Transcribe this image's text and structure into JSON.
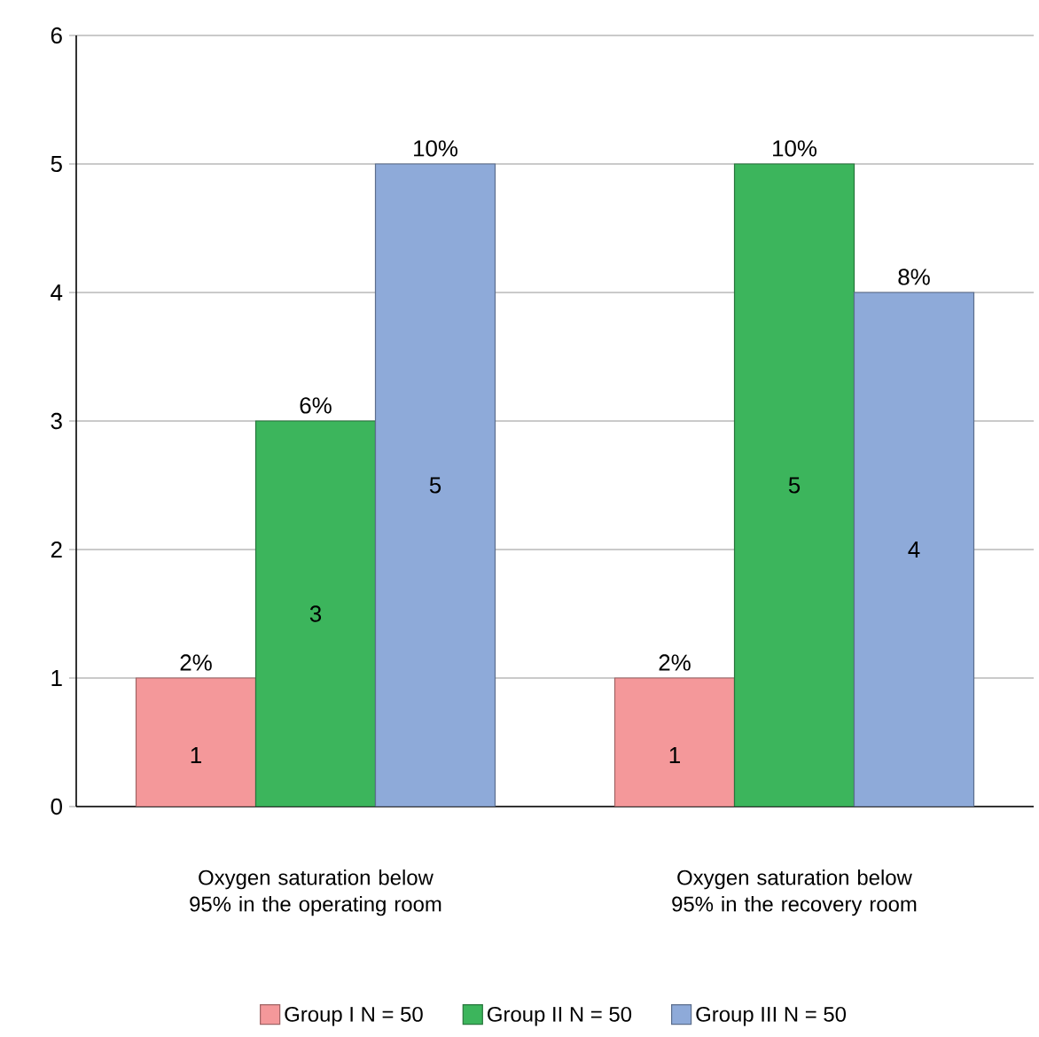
{
  "chart_data": {
    "type": "bar",
    "categories": [
      "Oxygen saturation below 95% in the operating room",
      "Oxygen saturation below 95% in the recovery room"
    ],
    "series": [
      {
        "name": "Group I N = 50",
        "color": "#f4989a",
        "values": [
          1,
          1
        ]
      },
      {
        "name": "Group II N = 50",
        "color": "#3cb55c",
        "values": [
          3,
          5
        ]
      },
      {
        "name": "Group III N = 50",
        "color": "#8eaad9",
        "values": [
          5,
          4
        ]
      }
    ],
    "annotations": [
      "2%",
      "2%",
      "6%",
      "10%",
      "10%",
      "8%"
    ],
    "ylim": [
      0,
      6
    ],
    "yticks": [
      0,
      1,
      2,
      3,
      4,
      5,
      6
    ],
    "grid": "y",
    "legend": "bottom",
    "data_labels": true
  }
}
